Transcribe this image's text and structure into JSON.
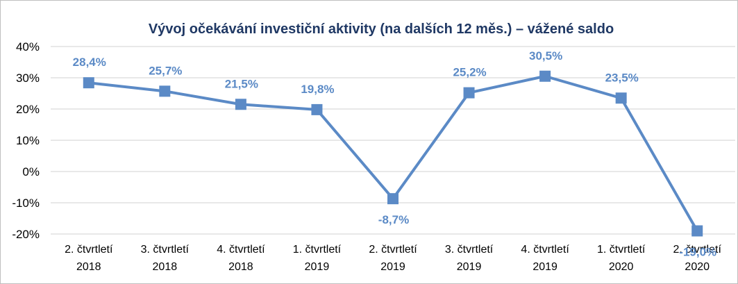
{
  "chart_data": {
    "type": "line",
    "title": "Vývoj očekávání investiční aktivity (na dalších 12 měs.) – vážené saldo",
    "categories": [
      [
        "2. čtvrtletí",
        "2018"
      ],
      [
        "3. čtvrtletí",
        "2018"
      ],
      [
        "4. čtvrtletí",
        "2018"
      ],
      [
        "1. čtvrtletí",
        "2019"
      ],
      [
        "2. čtvrtletí",
        "2019"
      ],
      [
        "3. čtvrtletí",
        "2019"
      ],
      [
        "4. čtvrtletí",
        "2019"
      ],
      [
        "1. čtvrtletí",
        "2020"
      ],
      [
        "2. čtvrtletí",
        "2020"
      ]
    ],
    "series": [
      {
        "values": [
          28.4,
          25.7,
          21.5,
          19.8,
          -8.7,
          25.2,
          30.5,
          23.5,
          -19.0
        ],
        "labels": [
          "28,4%",
          "25,7%",
          "21,5%",
          "19,8%",
          "-8,7%",
          "25,2%",
          "30,5%",
          "23,5%",
          "-19,0%"
        ],
        "color": "#5b8ac6"
      }
    ],
    "ylim": [
      -20,
      40
    ],
    "yticks": [
      40,
      30,
      20,
      10,
      0,
      -10,
      -20
    ],
    "ytick_labels": [
      "40%",
      "30%",
      "20%",
      "10%",
      "0%",
      "-10%",
      "-20%"
    ],
    "grid": true,
    "grid_color": "#d9d9d9",
    "label_color": "#5b8ac6",
    "legend": "none"
  }
}
